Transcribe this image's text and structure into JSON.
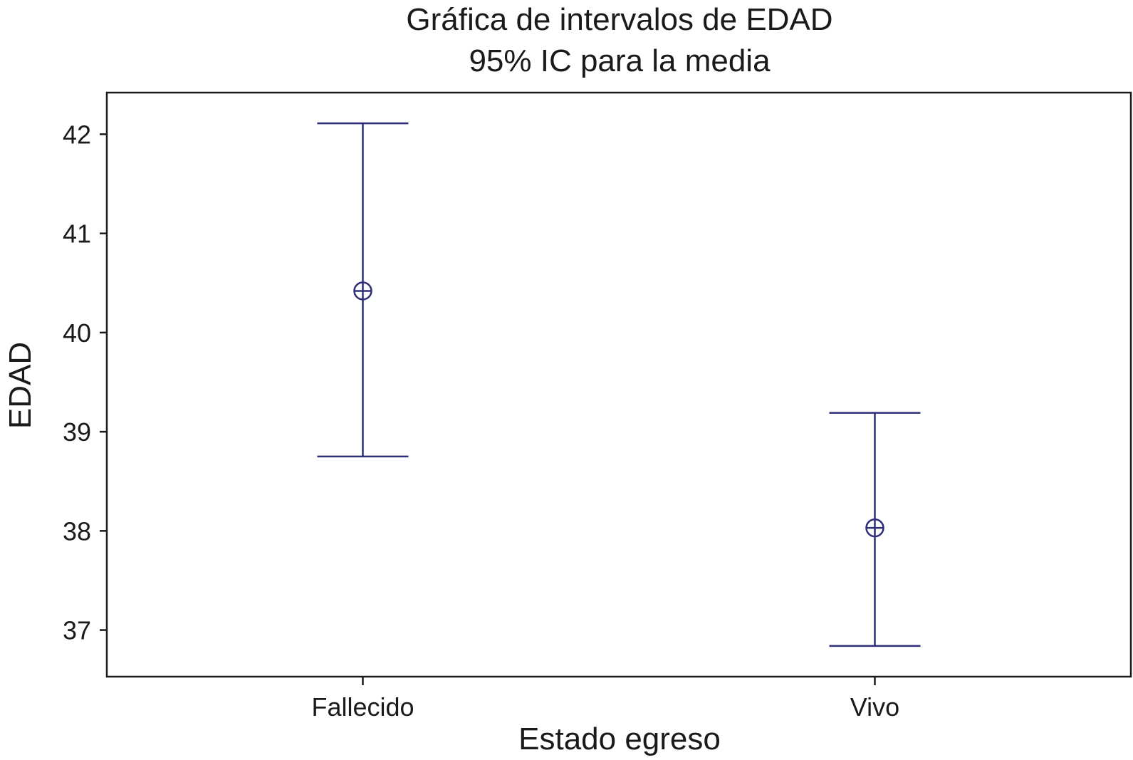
{
  "chart_data": {
    "type": "interval",
    "title": "Gráfica de intervalos de EDAD",
    "subtitle": "95% IC para la media",
    "xlabel": "Estado egreso",
    "ylabel": "EDAD",
    "categories": [
      "Fallecido",
      "Vivo"
    ],
    "intervals": [
      {
        "category": "Fallecido",
        "mean": 40.42,
        "lower": 38.75,
        "upper": 42.11
      },
      {
        "category": "Vivo",
        "mean": 38.03,
        "lower": 36.84,
        "upper": 39.19
      }
    ],
    "ylim": [
      36.53,
      42.42
    ],
    "yticks": [
      37,
      38,
      39,
      40,
      41,
      42
    ],
    "ytick_labels": [
      "37",
      "38",
      "39",
      "40",
      "41",
      "42"
    ],
    "grid": false,
    "legend": "none",
    "line_color": "#2e2e7a",
    "axis_color": "#1a1a1a"
  }
}
